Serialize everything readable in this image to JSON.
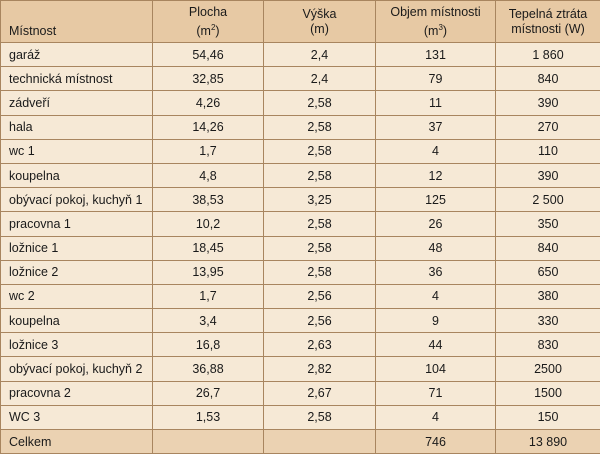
{
  "header": {
    "col_mistnost": "Místnost",
    "col_plocha": "Plocha",
    "col_plocha_unit_open": "(m",
    "col_plocha_unit_sup": "2",
    "col_plocha_unit_close": ")",
    "col_vyska": "Výška",
    "col_vyska_unit": "(m)",
    "col_objem": "Objem místnosti",
    "col_objem_unit_open": "(m",
    "col_objem_unit_sup": "3",
    "col_objem_unit_close": ")",
    "col_ztrata_line1": "Tepelná ztráta",
    "col_ztrata_line2": "místnosti (W)"
  },
  "rows": [
    {
      "mistnost": "garáž",
      "plocha": "54,46",
      "vyska": "2,4",
      "objem": "131",
      "ztrata": "1 860"
    },
    {
      "mistnost": "technická místnost",
      "plocha": "32,85",
      "vyska": "2,4",
      "objem": "79",
      "ztrata": "840"
    },
    {
      "mistnost": "zádveří",
      "plocha": "4,26",
      "vyska": "2,58",
      "objem": "11",
      "ztrata": "390"
    },
    {
      "mistnost": "hala",
      "plocha": "14,26",
      "vyska": "2,58",
      "objem": "37",
      "ztrata": "270"
    },
    {
      "mistnost": "wc 1",
      "plocha": "1,7",
      "vyska": "2,58",
      "objem": "4",
      "ztrata": "110"
    },
    {
      "mistnost": "koupelna",
      "plocha": "4,8",
      "vyska": "2,58",
      "objem": "12",
      "ztrata": "390"
    },
    {
      "mistnost": "obývací pokoj, kuchyň 1",
      "plocha": "38,53",
      "vyska": "3,25",
      "objem": "125",
      "ztrata": "2 500"
    },
    {
      "mistnost": "pracovna 1",
      "plocha": "10,2",
      "vyska": "2,58",
      "objem": "26",
      "ztrata": "350"
    },
    {
      "mistnost": "ložnice 1",
      "plocha": "18,45",
      "vyska": "2,58",
      "objem": "48",
      "ztrata": "840"
    },
    {
      "mistnost": "ložnice 2",
      "plocha": "13,95",
      "vyska": "2,58",
      "objem": "36",
      "ztrata": "650"
    },
    {
      "mistnost": "wc 2",
      "plocha": "1,7",
      "vyska": "2,56",
      "objem": "4",
      "ztrata": "380"
    },
    {
      "mistnost": "koupelna",
      "plocha": "3,4",
      "vyska": "2,56",
      "objem": "9",
      "ztrata": "330"
    },
    {
      "mistnost": "ložnice 3",
      "plocha": "16,8",
      "vyska": "2,63",
      "objem": "44",
      "ztrata": "830"
    },
    {
      "mistnost": "obývací pokoj, kuchyň 2",
      "plocha": "36,88",
      "vyska": "2,82",
      "objem": "104",
      "ztrata": "2500"
    },
    {
      "mistnost": "pracovna 2",
      "plocha": "26,7",
      "vyska": "2,67",
      "objem": "71",
      "ztrata": "1500"
    },
    {
      "mistnost": "WC 3",
      "plocha": "1,53",
      "vyska": "2,58",
      "objem": "4",
      "ztrata": "150"
    }
  ],
  "total": {
    "label": "Celkem",
    "plocha": "",
    "vyska": "",
    "objem": "746",
    "ztrata": "13 890"
  },
  "colors": {
    "background": "#f6e9d6",
    "header_background": "#e7c9a4",
    "total_background": "#ebd2b2",
    "border": "#a8855f"
  }
}
